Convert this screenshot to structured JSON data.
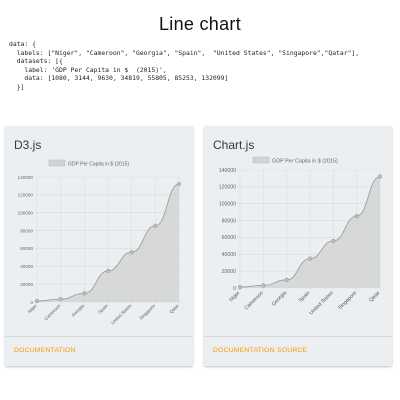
{
  "page": {
    "title": "Line chart",
    "code_lines": [
      "data: {",
      "  labels: [\"Niger\", \"Cameroon\", \"Georgia\", \"Spain\",  \"United States\", \"Singapore\",\"Qatar\"],",
      "  datasets: [{",
      "    label: 'GDP Per Capita in $  (2015)',",
      "    data: [1080, 3144, 9630, 34819, 55805, 85253, 132099]",
      "  }]"
    ]
  },
  "cards": [
    {
      "title": "D3.js",
      "links": [
        "DOCUMENTATION"
      ]
    },
    {
      "title": "Chart.js",
      "links": [
        "DOCUMENTATION",
        "SOURCE"
      ]
    }
  ],
  "colors": {
    "accent": "#ff9800",
    "area_fill": "#d3d3d3",
    "line": "#9e9e9e",
    "card_bg": "#eceff1"
  },
  "chart_data": [
    {
      "type": "area",
      "categories": [
        "Niger",
        "Cameroon",
        "Georgia",
        "Spain",
        "United States",
        "Singapore",
        "Qatar"
      ],
      "series": [
        {
          "name": "GDP Per Capita in $ (2015)",
          "values": [
            1080,
            3144,
            9630,
            34819,
            55805,
            85253,
            132099
          ]
        }
      ],
      "yticks": [
        "0",
        "20000",
        "40000",
        "60000",
        "80000",
        "100000",
        "120000",
        "140000"
      ],
      "ylim": [
        0,
        140000
      ],
      "legend": "top",
      "grid": true
    },
    {
      "type": "area",
      "categories": [
        "Niger",
        "Cameroon",
        "Georgia",
        "Spain",
        "United States",
        "Singapore",
        "Qatar"
      ],
      "series": [
        {
          "name": "GDP Per Capita in $  (2015)",
          "values": [
            1080,
            3144,
            9630,
            34819,
            55805,
            85253,
            132099
          ]
        }
      ],
      "yticks": [
        "0",
        "20000",
        "40000",
        "60000",
        "80000",
        "100000",
        "120000",
        "140000"
      ],
      "ylim": [
        0,
        140000
      ],
      "legend": "top",
      "grid": true
    }
  ]
}
